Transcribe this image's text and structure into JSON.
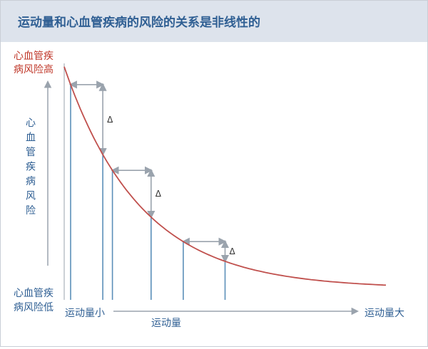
{
  "header": {
    "title": "运动量和心血管疾病的风险的关系是非线性的"
  },
  "colors": {
    "header_bg": "#dde3ec",
    "title": "#2f5f93",
    "curve": "#c0504d",
    "red_text": "#c0392b",
    "blue_text": "#2f5f93",
    "axis": "#9aa3ad",
    "drop_lines": "#5b8fb9",
    "arrows": "#9aa3ad"
  },
  "chart_data": {
    "type": "line",
    "title": "运动量和心血管疾病的风险的关系是非线性的",
    "xlabel": "运动量",
    "ylabel": "心血管疾病风险",
    "x_low_label": "运动量小",
    "x_high_label": "运动量大",
    "y_high_label_line1": "心血管疾",
    "y_high_label_line2": "病风险高",
    "y_low_label_line1": "心血管疾",
    "y_low_label_line2": "病风险低",
    "y_axis_title_chars": [
      "心",
      "血",
      "管",
      "疾",
      "病",
      "风",
      "险"
    ],
    "curve": {
      "shape": "exponential decay",
      "x_range": [
        0,
        1
      ],
      "y_range": [
        0,
        1
      ]
    },
    "delta_label": "Δ",
    "delta_steps": [
      {
        "x_start": 0.02,
        "x_end": 0.12
      },
      {
        "x_start": 0.15,
        "x_end": 0.27
      },
      {
        "x_start": 0.37,
        "x_end": 0.5
      }
    ],
    "grid": false,
    "legend": "none"
  }
}
